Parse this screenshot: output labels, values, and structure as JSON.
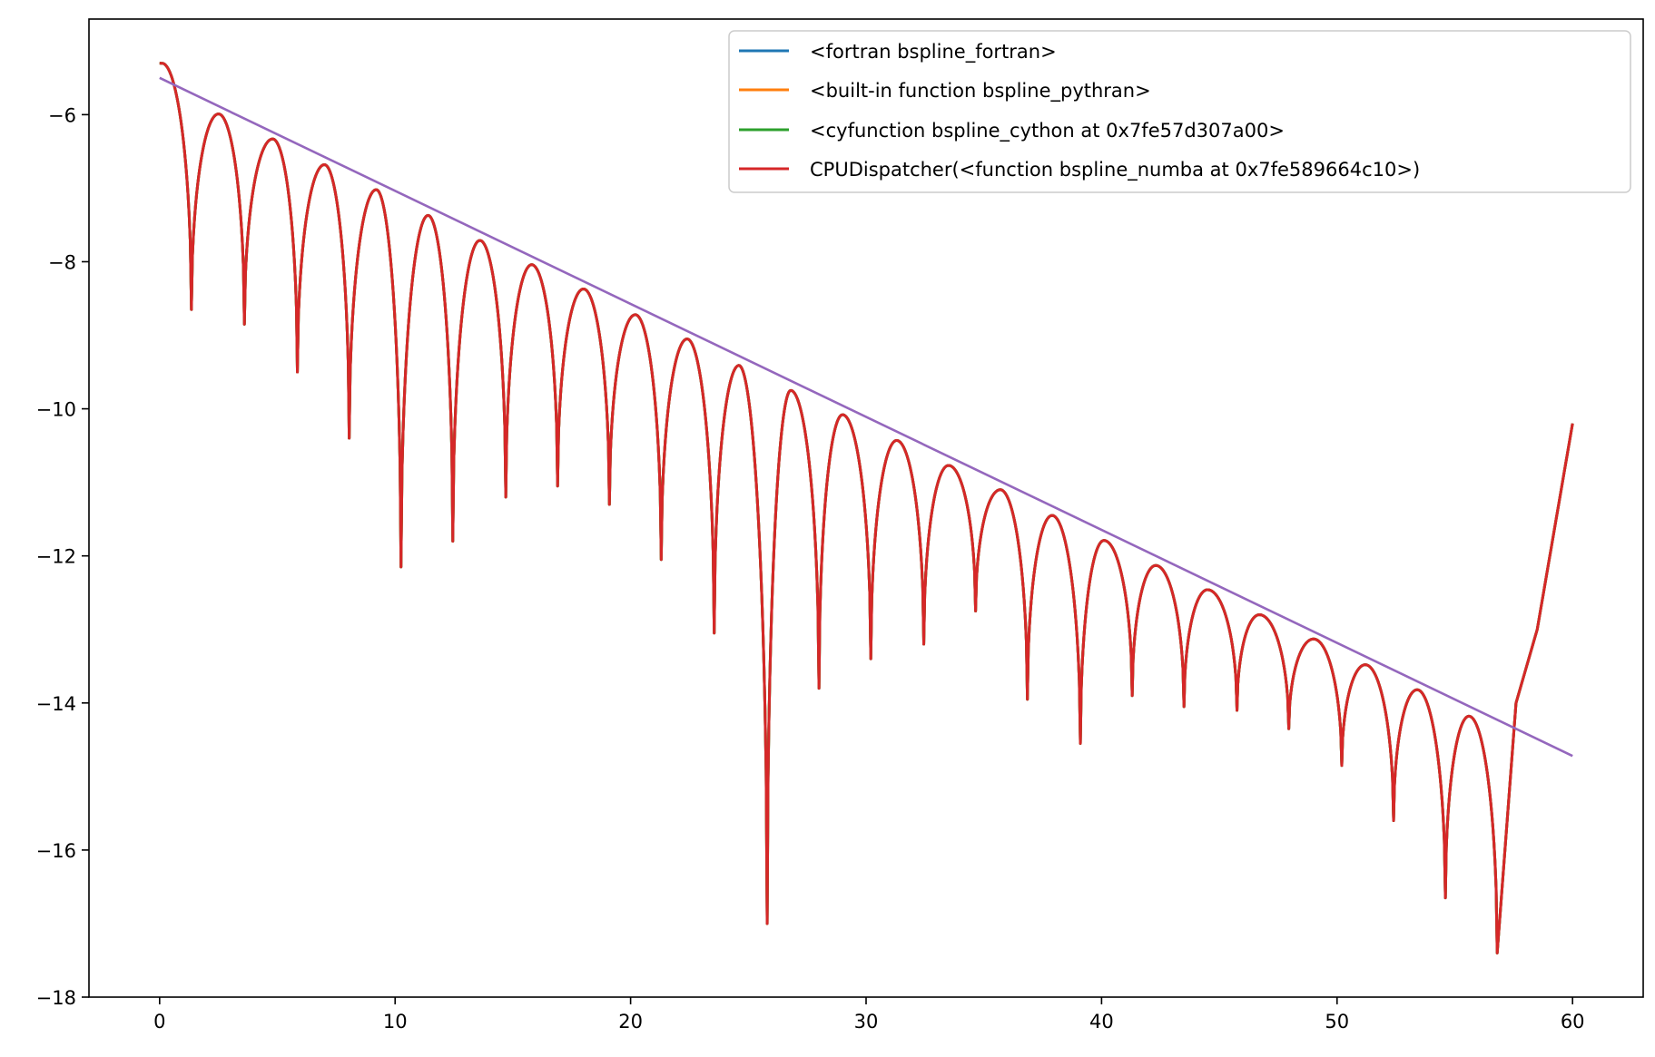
{
  "chart_data": {
    "type": "line",
    "title": "",
    "xlabel": "",
    "ylabel": "",
    "xlim": [
      -3,
      63
    ],
    "ylim": [
      -18,
      -4.7
    ],
    "x_ticks": [
      0,
      10,
      20,
      30,
      40,
      50,
      60
    ],
    "y_ticks": [
      -18,
      -16,
      -14,
      -12,
      -10,
      -8,
      -6
    ],
    "x_tick_labels": [
      "0",
      "10",
      "20",
      "30",
      "40",
      "50",
      "60"
    ],
    "y_tick_labels": [
      "−18",
      "−16",
      "−14",
      "−12",
      "−10",
      "−8",
      "−6"
    ],
    "grid": false,
    "legend_position": "top-right",
    "series": [
      {
        "name": "<fortran bspline_fortran>",
        "color": "#1f77b4",
        "style": "oscillating-error"
      },
      {
        "name": "<built-in function bspline_pythran>",
        "color": "#ff7f0e",
        "style": "oscillating-error"
      },
      {
        "name": "<cyfunction bspline_cython at 0x7fe57d307a00>",
        "color": "#2ca02c",
        "style": "oscillating-error"
      },
      {
        "name": "CPUDispatcher(<function bspline_numba at 0x7fe589664c10>)",
        "color": "#d62728",
        "style": "oscillating-error"
      },
      {
        "name": "",
        "color": "#9467bd",
        "style": "straight",
        "x": [
          0,
          60
        ],
        "y": [
          -5.5,
          -14.72
        ]
      }
    ],
    "envelope": {
      "x": [
        0,
        57.2
      ],
      "y": [
        -5.99,
        -14.25
      ],
      "start_value": -5.3,
      "end_value": -10.2
    },
    "peaks": [
      [
        0.1,
        -5.3
      ],
      [
        2.5,
        -5.99
      ],
      [
        4.8,
        -6.33
      ],
      [
        7.0,
        -6.68
      ],
      [
        9.2,
        -7.02
      ],
      [
        11.4,
        -7.37
      ],
      [
        13.6,
        -7.71
      ],
      [
        15.8,
        -8.04
      ],
      [
        18.0,
        -8.37
      ],
      [
        20.2,
        -8.72
      ],
      [
        22.4,
        -9.05
      ],
      [
        24.6,
        -9.41
      ],
      [
        26.8,
        -9.75
      ],
      [
        29.0,
        -10.08
      ],
      [
        31.3,
        -10.43
      ],
      [
        33.5,
        -10.77
      ],
      [
        35.7,
        -11.1
      ],
      [
        37.9,
        -11.45
      ],
      [
        40.1,
        -11.79
      ],
      [
        42.3,
        -12.13
      ],
      [
        44.5,
        -12.46
      ],
      [
        46.7,
        -12.8
      ],
      [
        49.0,
        -13.13
      ],
      [
        51.2,
        -13.48
      ],
      [
        53.4,
        -13.82
      ],
      [
        55.6,
        -14.18
      ]
    ],
    "dips": [
      [
        1.35,
        -8.65
      ],
      [
        3.6,
        -8.85
      ],
      [
        5.85,
        -9.5
      ],
      [
        8.05,
        -10.4
      ],
      [
        10.25,
        -12.15
      ],
      [
        12.45,
        -11.8
      ],
      [
        14.7,
        -11.2
      ],
      [
        16.9,
        -11.05
      ],
      [
        19.1,
        -11.3
      ],
      [
        21.3,
        -12.05
      ],
      [
        23.55,
        -13.05
      ],
      [
        25.8,
        -17.0
      ],
      [
        28.0,
        -13.8
      ],
      [
        30.2,
        -13.4
      ],
      [
        32.45,
        -13.2
      ],
      [
        34.65,
        -12.75
      ],
      [
        36.85,
        -13.95
      ],
      [
        39.1,
        -14.55
      ],
      [
        41.3,
        -13.9
      ],
      [
        43.5,
        -14.05
      ],
      [
        45.75,
        -14.1
      ],
      [
        47.95,
        -14.35
      ],
      [
        50.2,
        -14.85
      ],
      [
        52.4,
        -15.6
      ],
      [
        54.6,
        -16.65
      ],
      [
        56.8,
        -17.4
      ]
    ]
  }
}
